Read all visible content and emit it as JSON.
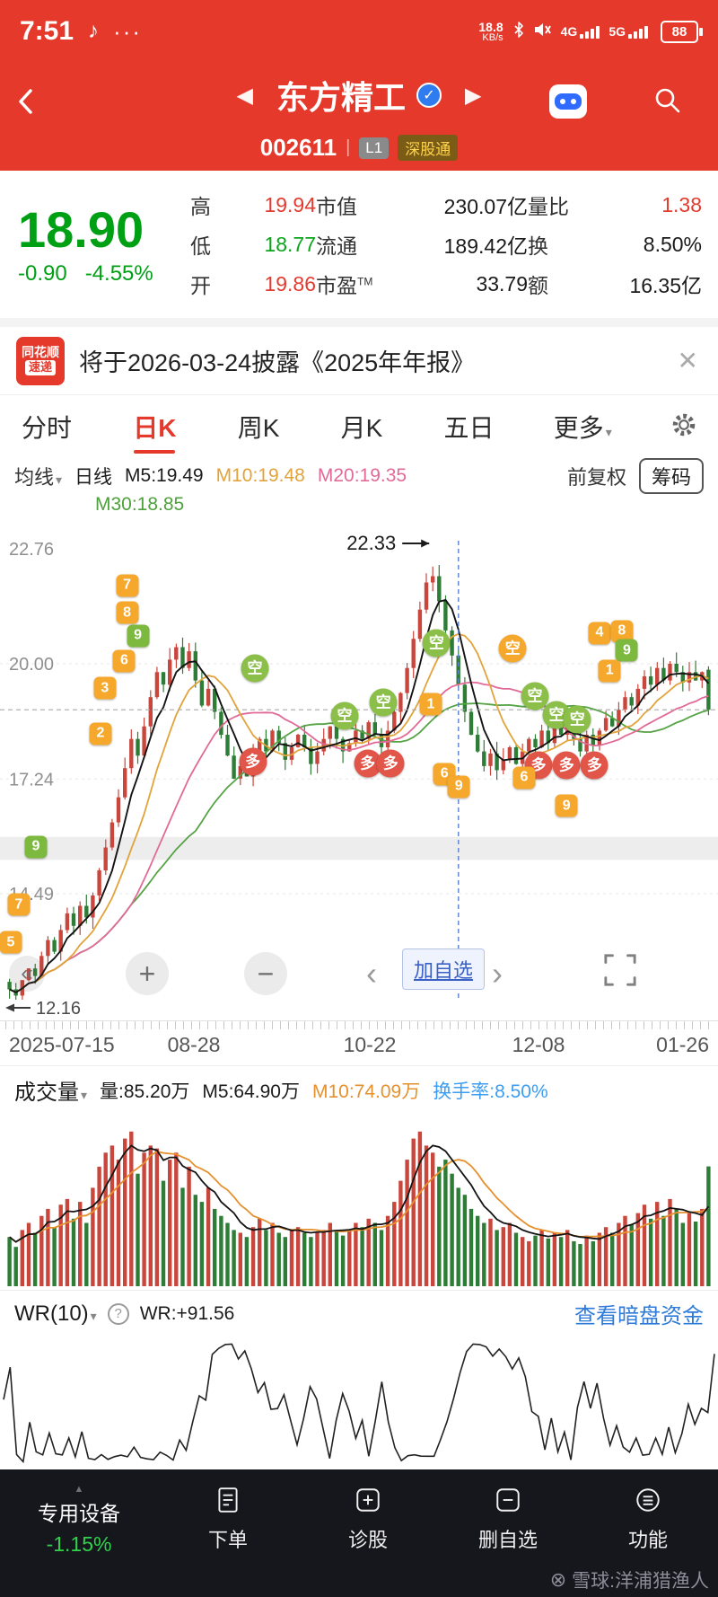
{
  "status_bar": {
    "time": "7:51",
    "dots": "···",
    "net_speed": "18.8",
    "net_unit": "KB/s",
    "net_4g": "4G",
    "net_5g": "5G",
    "battery": "88"
  },
  "header": {
    "title": "东方精工",
    "prev": "◀",
    "next": "▶",
    "code": "002611",
    "level_badge": "L1",
    "connect_badge": "深股通"
  },
  "quote": {
    "price": "18.90",
    "change": "-0.90",
    "change_pct": "-4.55%",
    "pe_sup": "TM",
    "rows": [
      {
        "l1": "高",
        "v1": "19.94",
        "l2": "市值",
        "v2": "230.07亿",
        "l3": "量比",
        "v3": "1.38"
      },
      {
        "l1": "低",
        "v1": "18.77",
        "l2": "流通",
        "v2": "189.42亿",
        "l3": "换",
        "v3": "8.50%"
      },
      {
        "l1": "开",
        "v1": "19.86",
        "l2": "市盈",
        "v2": "33.79",
        "l3": "额",
        "v3": "16.35亿"
      }
    ]
  },
  "banner": {
    "logo_top": "同花顺",
    "logo_bottom": "速递",
    "text": "将于2026-03-24披露《2025年年报》",
    "close": "✕"
  },
  "tabs": {
    "items": [
      "分时",
      "日K",
      "周K",
      "月K",
      "五日"
    ],
    "more": "更多"
  },
  "ma_bar": {
    "dropdown": "均线",
    "period_label": "日线",
    "m5": "M5:19.49",
    "m10": "M10:19.48",
    "m20": "M20:19.35",
    "m30": "M30:18.85",
    "adjust": "前复权",
    "chips": "筹码"
  },
  "kline_controls": {
    "collapse": "«",
    "zoom_in": "+",
    "zoom_out": "−",
    "prev": "‹",
    "add_watch": "加自选",
    "next": "›"
  },
  "dates": [
    "2025-07-15",
    "08-28",
    "10-22",
    "12-08",
    "01-26"
  ],
  "volume": {
    "title": "成交量",
    "vol": "量:85.20万",
    "m5": "M5:64.90万",
    "m10": "M10:74.09万",
    "turnover": "换手率:8.50%"
  },
  "wr": {
    "title": "WR(10)",
    "help": "?",
    "value": "WR:+91.56",
    "link": "查看暗盘资金"
  },
  "bottom": {
    "sector": "专用设备",
    "sector_change": "-1.15%",
    "items": [
      {
        "label": "下单"
      },
      {
        "label": "诊股"
      },
      {
        "label": "删自选"
      },
      {
        "label": "功能"
      }
    ],
    "watermark": "雪球:洋浦猎渔人"
  },
  "chart_data": [
    {
      "type": "candlestick",
      "title": "东方精工 002611 日K 前复权",
      "x_labels": [
        "2025-07-15",
        "08-28",
        "10-22",
        "12-08",
        "01-26"
      ],
      "y_ticks": [
        22.76,
        20.0,
        17.24,
        14.49
      ],
      "ylim": [
        11.8,
        22.95
      ],
      "peak_high": 22.33,
      "peak_label": "22.33",
      "min_label": "12.16",
      "current_price": 18.9,
      "band": [
        15.3,
        15.85
      ],
      "vline_index": 70,
      "ma": {
        "m5": 19.49,
        "m10": 19.48,
        "m20": 19.35,
        "m30": 18.85
      },
      "colors": {
        "up": "#c9463c",
        "down": "#2e7d36",
        "ma5": "#141414",
        "ma10": "#e2a33b",
        "ma20": "#e26a97",
        "ma30": "#55a345"
      },
      "last_candle": {
        "open": 19.86,
        "high": 19.94,
        "low": 18.77,
        "close": 18.9
      },
      "closes": [
        12.2,
        12.05,
        12.42,
        12.7,
        12.52,
        13.0,
        13.38,
        13.1,
        13.62,
        14.02,
        13.72,
        14.2,
        13.92,
        14.45,
        15.05,
        15.6,
        16.2,
        16.8,
        17.5,
        18.2,
        17.8,
        18.5,
        19.2,
        19.8,
        19.5,
        20.1,
        20.4,
        19.9,
        20.3,
        19.6,
        19.0,
        19.4,
        18.85,
        18.3,
        17.8,
        17.25,
        17.55,
        17.3,
        17.8,
        18.2,
        17.9,
        18.4,
        18.1,
        17.7,
        18.0,
        18.3,
        18.0,
        17.6,
        17.9,
        18.2,
        18.5,
        18.2,
        17.9,
        18.1,
        18.4,
        18.2,
        18.6,
        18.3,
        18.0,
        18.4,
        18.85,
        19.3,
        19.9,
        20.6,
        21.3,
        21.95,
        22.1,
        21.5,
        20.8,
        20.2,
        19.5,
        18.85,
        18.3,
        17.9,
        17.55,
        17.85,
        17.45,
        17.7,
        18.0,
        17.6,
        17.9,
        18.2,
        18.0,
        18.4,
        18.1,
        18.5,
        18.3,
        18.6,
        18.2,
        17.9,
        18.3,
        18.05,
        18.4,
        18.7,
        18.5,
        18.9,
        19.2,
        19.0,
        19.4,
        19.7,
        19.5,
        19.9,
        19.6,
        20.0,
        19.8,
        19.55,
        19.8,
        19.6,
        19.8,
        18.9
      ],
      "badges": [
        {
          "t": "7",
          "k": "no",
          "x": 17.7,
          "y": 13.5
        },
        {
          "t": "8",
          "k": "no",
          "x": 17.7,
          "y": 19.0
        },
        {
          "t": "9",
          "k": "ng",
          "x": 19.2,
          "y": 23.5
        },
        {
          "t": "6",
          "k": "no",
          "x": 17.3,
          "y": 28.5
        },
        {
          "t": "3",
          "k": "no",
          "x": 14.6,
          "y": 34.0
        },
        {
          "t": "2",
          "k": "no",
          "x": 14.0,
          "y": 43.0
        },
        {
          "t": "9",
          "k": "ng",
          "x": 5.0,
          "y": 65.5
        },
        {
          "t": "7",
          "k": "no",
          "x": 2.6,
          "y": 77.0
        },
        {
          "t": "5",
          "k": "no",
          "x": 1.5,
          "y": 84.5
        },
        {
          "t": "空",
          "k": "sell",
          "x": 35.5,
          "y": 30.0
        },
        {
          "t": "多",
          "k": "buy",
          "x": 35.2,
          "y": 48.5
        },
        {
          "t": "空",
          "k": "sell",
          "x": 48.0,
          "y": 39.5
        },
        {
          "t": "多",
          "k": "buy",
          "x": 51.2,
          "y": 49.0
        },
        {
          "t": "多",
          "k": "buy",
          "x": 54.4,
          "y": 49.0
        },
        {
          "t": "空",
          "k": "sell",
          "x": 53.4,
          "y": 36.8
        },
        {
          "t": "空",
          "k": "sell",
          "x": 60.8,
          "y": 25.0
        },
        {
          "t": "1",
          "k": "no",
          "x": 60.0,
          "y": 37.2
        },
        {
          "t": "6",
          "k": "no",
          "x": 61.9,
          "y": 51.0
        },
        {
          "t": "9",
          "k": "no",
          "x": 63.9,
          "y": 53.5
        },
        {
          "t": "空",
          "k": "sello",
          "x": 71.4,
          "y": 26.0
        },
        {
          "t": "空",
          "k": "sell",
          "x": 74.5,
          "y": 35.6
        },
        {
          "t": "空",
          "k": "sell",
          "x": 77.5,
          "y": 39.2
        },
        {
          "t": "空",
          "k": "sell",
          "x": 80.4,
          "y": 40.2
        },
        {
          "t": "多",
          "k": "buy",
          "x": 75.0,
          "y": 49.3
        },
        {
          "t": "多",
          "k": "buy",
          "x": 78.9,
          "y": 49.3
        },
        {
          "t": "多",
          "k": "buy",
          "x": 82.8,
          "y": 49.3
        },
        {
          "t": "6",
          "k": "no",
          "x": 73.0,
          "y": 51.7
        },
        {
          "t": "9",
          "k": "no",
          "x": 78.9,
          "y": 57.4
        },
        {
          "t": "4",
          "k": "no",
          "x": 83.5,
          "y": 23.0
        },
        {
          "t": "8",
          "k": "no",
          "x": 86.6,
          "y": 22.6
        },
        {
          "t": "9",
          "k": "ng",
          "x": 87.3,
          "y": 26.5
        },
        {
          "t": "1",
          "k": "no",
          "x": 84.9,
          "y": 30.5
        }
      ]
    },
    {
      "type": "bar",
      "name": "成交量(万)",
      "ma5_last": 64.9,
      "ma10_last": 74.09,
      "colors": {
        "ma5": "#141414",
        "ma10": "#e6902e"
      },
      "values": [
        35,
        28,
        40,
        45,
        38,
        50,
        55,
        42,
        58,
        62,
        48,
        60,
        45,
        70,
        85,
        95,
        100,
        90,
        105,
        110,
        80,
        95,
        100,
        98,
        75,
        90,
        95,
        70,
        85,
        65,
        60,
        70,
        55,
        50,
        45,
        40,
        38,
        35,
        42,
        48,
        40,
        45,
        38,
        35,
        40,
        42,
        38,
        35,
        38,
        40,
        45,
        40,
        36,
        40,
        45,
        42,
        48,
        45,
        40,
        50,
        60,
        75,
        90,
        105,
        110,
        100,
        95,
        85,
        90,
        80,
        70,
        65,
        55,
        50,
        45,
        48,
        40,
        42,
        45,
        38,
        35,
        32,
        36,
        40,
        34,
        38,
        35,
        40,
        32,
        30,
        36,
        32,
        38,
        42,
        38,
        45,
        50,
        44,
        52,
        58,
        48,
        60,
        50,
        62,
        55,
        45,
        52,
        46,
        55,
        85.2
      ]
    },
    {
      "type": "line",
      "name": "WR(10)",
      "period": 10,
      "current": 91.56,
      "range": [
        0,
        100
      ]
    }
  ]
}
